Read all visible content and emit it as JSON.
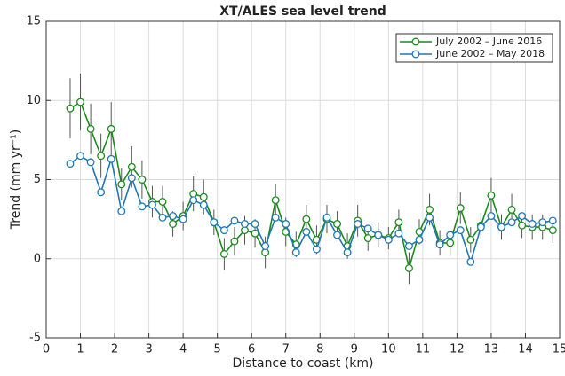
{
  "chart_data": {
    "type": "line",
    "title": "XT/ALES sea level trend",
    "x_label": "Distance to coast (km)",
    "y_label": "Trend (mm yr⁻¹)",
    "x": [
      0.7,
      1,
      1.3,
      1.6,
      1.9,
      2.2,
      2.5,
      2.8,
      3.1,
      3.4,
      3.7,
      4,
      4.3,
      4.6,
      4.9,
      5.2,
      5.5,
      5.8,
      6.1,
      6.4,
      6.7,
      7,
      7.3,
      7.6,
      7.9,
      8.2,
      8.5,
      8.8,
      9.1,
      9.4,
      9.7,
      10,
      10.3,
      10.6,
      10.9,
      11.2,
      11.5,
      11.8,
      12.1,
      12.4,
      12.7,
      13,
      13.3,
      13.6,
      13.9,
      14.2,
      14.5,
      14.8
    ],
    "series": [
      {
        "name": "July 2002 – June 2016",
        "color": "#1a8a1a",
        "values": [
          9.5,
          9.9,
          8.2,
          6.5,
          8.2,
          4.7,
          5.8,
          5.0,
          3.6,
          3.6,
          2.2,
          2.7,
          4.1,
          3.9,
          2.3,
          0.3,
          1.1,
          1.8,
          1.6,
          0.4,
          3.7,
          1.7,
          0.9,
          2.5,
          1.2,
          2.5,
          2.2,
          0.8,
          2.4,
          1.3,
          1.5,
          1.3,
          2.3,
          -0.6,
          1.7,
          3.1,
          1.0,
          1.0,
          3.2,
          1.2,
          2.1,
          4.0,
          2.0,
          3.1,
          2.1,
          2.0,
          2.0,
          1.8
        ],
        "errors": [
          1.9,
          1.8,
          1.6,
          1.4,
          1.7,
          1.0,
          1.3,
          1.2,
          1.0,
          1.0,
          0.8,
          0.9,
          1.1,
          1.1,
          0.8,
          1.0,
          0.9,
          0.9,
          0.9,
          1.0,
          1.0,
          0.9,
          0.8,
          0.9,
          0.9,
          0.9,
          0.8,
          0.8,
          1.0,
          0.8,
          0.8,
          0.7,
          0.8,
          1.0,
          0.8,
          1.0,
          0.8,
          0.8,
          1.0,
          0.8,
          0.8,
          1.1,
          0.8,
          1.0,
          0.8,
          0.8,
          0.8,
          0.8
        ]
      },
      {
        "name": "June 2002 – May 2018",
        "color": "#1f77b4",
        "values": [
          6.0,
          6.5,
          6.1,
          4.2,
          6.3,
          3.0,
          5.1,
          3.3,
          3.4,
          2.6,
          2.7,
          2.5,
          3.7,
          3.4,
          2.3,
          1.8,
          2.4,
          2.2,
          2.2,
          0.8,
          2.6,
          2.2,
          0.4,
          1.7,
          0.6,
          2.6,
          1.5,
          0.4,
          2.2,
          1.9,
          1.5,
          1.2,
          1.6,
          0.8,
          1.2,
          2.6,
          0.9,
          1.5,
          1.8,
          -0.2,
          2.0,
          2.7,
          2.0,
          2.3,
          2.7,
          2.2,
          2.3,
          2.4
        ]
      }
    ],
    "error_color": "#555555",
    "xlim": [
      0,
      15
    ],
    "xticks": [
      0,
      1,
      2,
      3,
      4,
      5,
      6,
      7,
      8,
      9,
      10,
      11,
      12,
      13,
      14,
      15
    ],
    "ylim": [
      -5,
      15
    ],
    "yticks": [
      -5,
      0,
      5,
      10,
      15
    ],
    "grid": true,
    "legend": "top-right"
  }
}
